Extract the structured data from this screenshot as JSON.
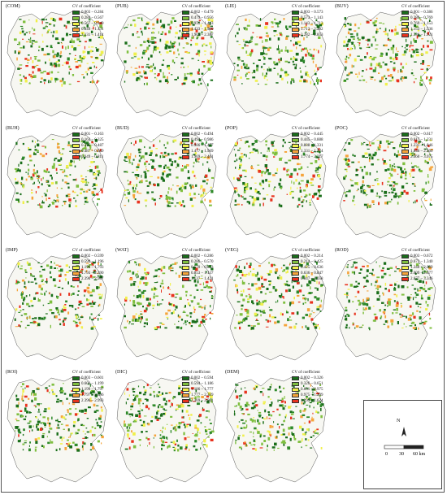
{
  "legend_title": "CV of coefficient",
  "legend_colors": [
    "#1a6e1a",
    "#7fbf3f",
    "#f0f04a",
    "#f5a43a",
    "#e8321e"
  ],
  "panels": [
    {
      "tag": "(COM)",
      "ranges": [
        "0.003 – 0.284",
        "0.284 – 0.567",
        "0.567 – 0.849",
        "0.849 – 1.131",
        "1.131 – 1.414"
      ]
    },
    {
      "tag": "(PUB)",
      "ranges": [
        "0.002 – 0.479",
        "0.479 – 0.956",
        "0.956 – 1.433",
        "1.433 – 1.909",
        "1.909 – 2.387"
      ]
    },
    {
      "tag": "(LIE)",
      "ranges": [
        "0.003 – 0.573",
        "0.573 – 1.143",
        "1.143 – 1.713",
        "1.713 – 2.282",
        "2.282 – 2.853"
      ]
    },
    {
      "tag": "(BUV)",
      "ranges": [
        "0.001 – 0.386",
        "0.386 – 0.769",
        "0.769 – 1.153",
        "1.153 – 1.536",
        "1.536 – 1.921"
      ]
    },
    {
      "tag": "(BUH)",
      "ranges": [
        "0.001 – 0.163",
        "0.163 – 0.325",
        "0.325 – 0.487",
        "0.487 – 0.649",
        "0.649 – 0.811"
      ]
    },
    {
      "tag": "(BUD)",
      "ranges": [
        "0.002 – 0.494",
        "0.494 – 0.986",
        "0.986 – 1.477",
        "1.477 – 1.969",
        "1.969 – 2.461"
      ]
    },
    {
      "tag": "(POP)",
      "ranges": [
        "0.002 – 0.445",
        "0.445 – 0.888",
        "0.888 – 1.331",
        "1.331 – 1.774",
        "1.774 – 2.217"
      ]
    },
    {
      "tag": "(POC)",
      "ranges": [
        "0.002 – 0.617",
        "0.617 – 1.231",
        "1.231 – 1.846",
        "1.846 – 2.460",
        "2.460 – 3.075"
      ]
    },
    {
      "tag": "(IMP)",
      "ranges": [
        "0.002 – 0.599",
        "0.599 – 1.196",
        "1.196 – 1.793",
        "1.793 – 2.390",
        "2.390 – 2.987"
      ]
    },
    {
      "tag": "(WAT)",
      "ranges": [
        "0.002 – 0.286",
        "0.286 – 0.570",
        "0.570 – 0.853",
        "0.853 – 1.137",
        "1.137 – 1.421"
      ]
    },
    {
      "tag": "(VEG)",
      "ranges": [
        "0.002 – 0.214",
        "0.214 – 0.425",
        "0.425 – 0.636",
        "0.636 – 0.847",
        "0.847 – 1.058"
      ]
    },
    {
      "tag": "(ROD)",
      "ranges": [
        "0.003 – 0.672",
        "0.672 – 1.340",
        "1.340 – 2.009",
        "2.009 – 2.677",
        "2.677 – 3.346"
      ]
    },
    {
      "tag": "(ROI)",
      "ranges": [
        "0.003 – 0.601",
        "0.601 – 1.199",
        "1.199 – 1.797",
        "1.797 – 2.396",
        "2.396 – 2.993"
      ]
    },
    {
      "tag": "(DIC)",
      "ranges": [
        "0.002 – 0.594",
        "0.594 – 1.186",
        "1.186 – 1.777",
        "1.777 – 2.369",
        "2.369 – 2.961"
      ]
    },
    {
      "tag": "(DEM)",
      "ranges": [
        "0.002 – 0.326",
        "0.326 – 0.651",
        "0.651 – 0.975",
        "0.975 – 1.299",
        "1.299 – 1.624"
      ]
    }
  ],
  "scale": {
    "north": "N",
    "labels": [
      "0",
      "30",
      "60 km"
    ]
  }
}
